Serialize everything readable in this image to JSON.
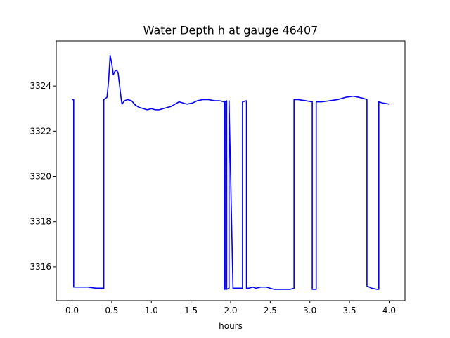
{
  "chart_data": {
    "type": "line",
    "title": "Water Depth h at gauge 46407",
    "xlabel": "hours",
    "ylabel": "",
    "xlim": [
      -0.2,
      4.2
    ],
    "ylim": [
      3314.5,
      3326.0
    ],
    "xticks": [
      0.0,
      0.5,
      1.0,
      1.5,
      2.0,
      2.5,
      3.0,
      3.5,
      4.0
    ],
    "xtick_labels": [
      "0.0",
      "0.5",
      "1.0",
      "1.5",
      "2.0",
      "2.5",
      "3.0",
      "3.5",
      "4.0"
    ],
    "yticks": [
      3316,
      3318,
      3320,
      3322,
      3324
    ],
    "ytick_labels": [
      "3316",
      "3318",
      "3320",
      "3322",
      "3324"
    ],
    "grid": false,
    "series": [
      {
        "color": "#0000ff",
        "x": [
          0.0,
          0.02,
          0.02,
          0.1,
          0.2,
          0.3,
          0.36,
          0.4,
          0.4,
          0.44,
          0.46,
          0.48,
          0.5,
          0.52,
          0.54,
          0.56,
          0.58,
          0.6,
          0.62,
          0.63,
          0.66,
          0.7,
          0.75,
          0.8,
          0.85,
          0.9,
          0.95,
          1.0,
          1.05,
          1.1,
          1.15,
          1.2,
          1.25,
          1.3,
          1.35,
          1.4,
          1.45,
          1.52,
          1.58,
          1.65,
          1.72,
          1.8,
          1.86,
          1.92,
          1.92,
          1.93,
          1.93,
          1.95,
          1.95,
          1.98,
          1.98,
          2.03,
          2.1,
          2.15,
          2.15,
          2.2,
          2.2,
          2.23,
          2.28,
          2.32,
          2.38,
          2.45,
          2.55,
          2.65,
          2.75,
          2.8,
          2.8,
          2.85,
          2.95,
          3.03,
          3.03,
          3.04,
          3.04,
          3.08,
          3.08,
          3.15,
          3.25,
          3.35,
          3.45,
          3.55,
          3.62,
          3.68,
          3.72,
          3.72,
          3.78,
          3.85,
          3.87,
          3.87,
          3.92,
          4.0
        ],
        "y": [
          3323.4,
          3323.4,
          3315.1,
          3315.1,
          3315.1,
          3315.05,
          3315.05,
          3315.05,
          3323.4,
          3323.5,
          3324.2,
          3325.35,
          3325.0,
          3324.5,
          3324.65,
          3324.7,
          3324.6,
          3324.0,
          3323.4,
          3323.2,
          3323.35,
          3323.4,
          3323.35,
          3323.15,
          3323.05,
          3323.0,
          3322.95,
          3323.0,
          3322.95,
          3322.95,
          3323.0,
          3323.05,
          3323.1,
          3323.2,
          3323.3,
          3323.25,
          3323.2,
          3323.25,
          3323.35,
          3323.4,
          3323.4,
          3323.35,
          3323.35,
          3323.3,
          3315.0,
          3315.0,
          3323.3,
          3323.35,
          3315.0,
          3315.05,
          3323.35,
          3315.05,
          3315.05,
          3315.05,
          3323.3,
          3323.35,
          3315.05,
          3315.05,
          3315.1,
          3315.05,
          3315.1,
          3315.1,
          3315.0,
          3315.0,
          3315.0,
          3315.05,
          3323.4,
          3323.4,
          3323.35,
          3323.3,
          3315.0,
          3315.0,
          3315.0,
          3315.0,
          3323.3,
          3323.3,
          3323.35,
          3323.4,
          3323.5,
          3323.55,
          3323.5,
          3323.45,
          3323.4,
          3315.15,
          3315.05,
          3315.0,
          3315.0,
          3323.3,
          3323.25,
          3323.2
        ]
      }
    ]
  }
}
